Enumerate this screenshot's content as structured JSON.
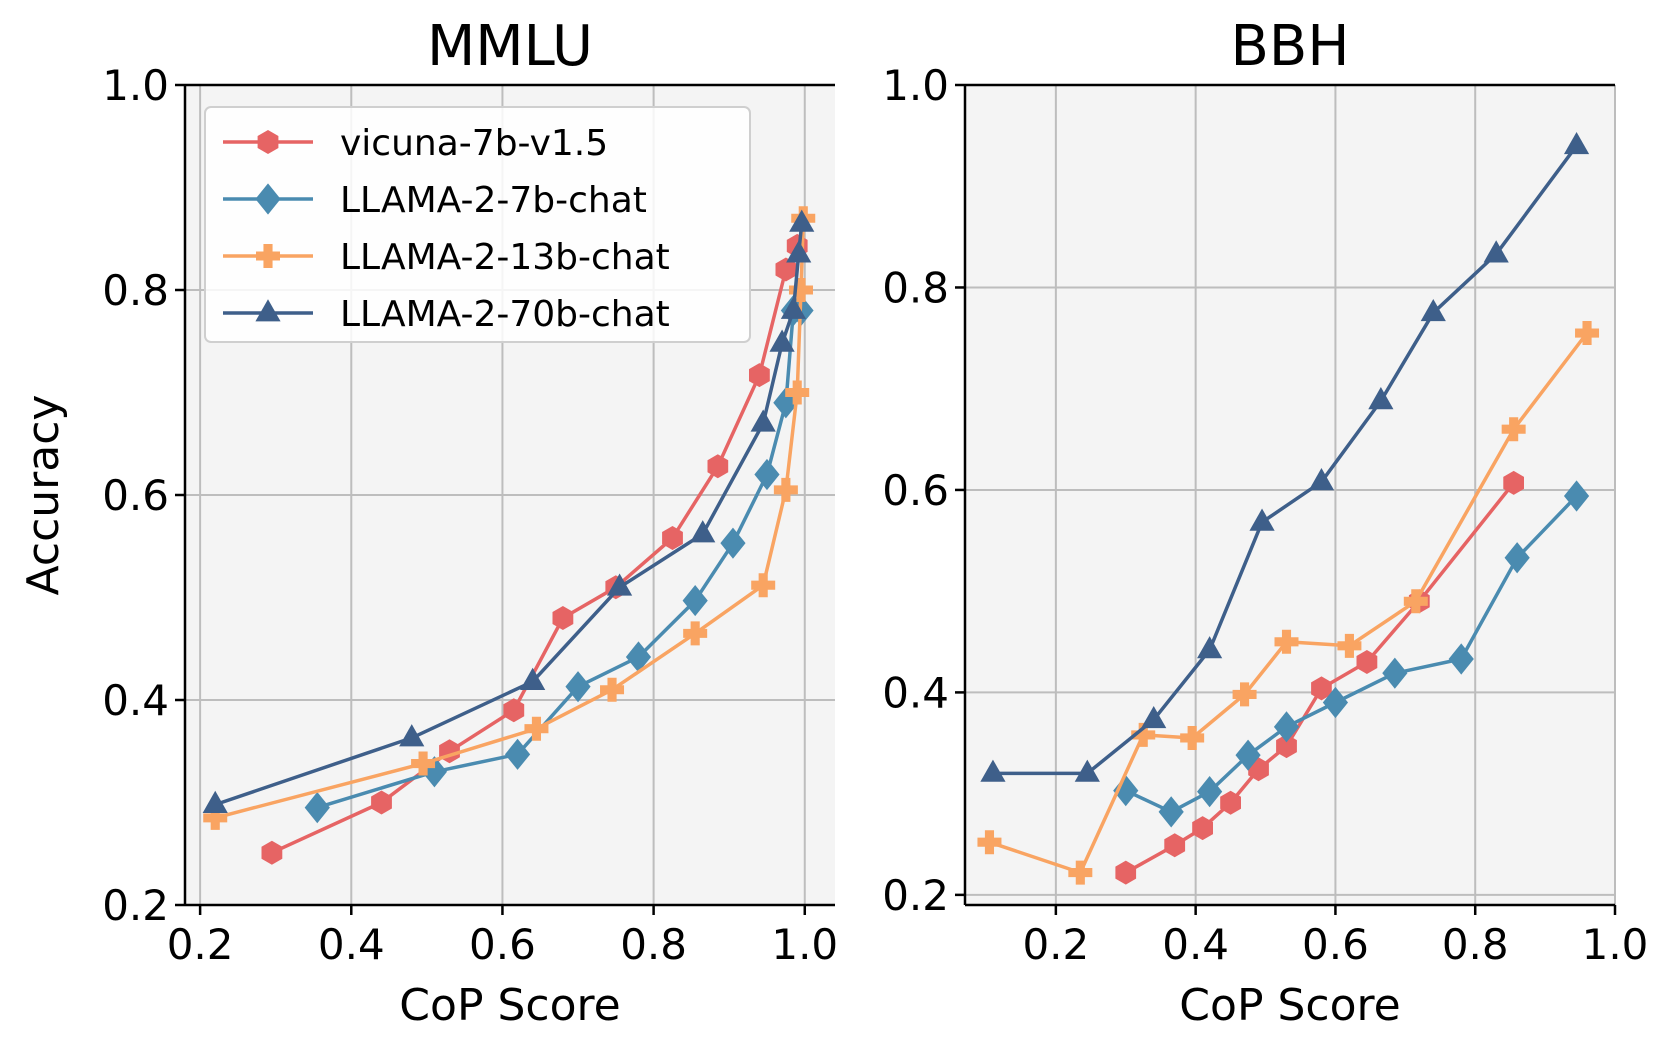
{
  "chart_data": [
    {
      "type": "line",
      "title": "MMLU",
      "xlabel": "CoP Score",
      "ylabel": "Accuracy",
      "xlim": [
        0.18,
        1.04
      ],
      "ylim": [
        0.2,
        1.0
      ],
      "xticks": [
        "0.2",
        "0.4",
        "0.6",
        "0.8",
        "1.0"
      ],
      "yticks": [
        "0.2",
        "0.4",
        "0.6",
        "0.8",
        "1.0"
      ],
      "xtick_values": [
        0.2,
        0.4,
        0.6,
        0.8,
        1.0
      ],
      "ytick_values": [
        0.2,
        0.4,
        0.6,
        0.8,
        1.0
      ],
      "grid": true,
      "legend": "top-left",
      "series": [
        {
          "name": "vicuna-7b-v1.5",
          "color": "#e66464",
          "marker": "hexagon",
          "x": [
            0.295,
            0.44,
            0.53,
            0.615,
            0.68,
            0.75,
            0.825,
            0.885,
            0.94,
            0.975,
            0.99
          ],
          "y": [
            0.251,
            0.3,
            0.35,
            0.39,
            0.48,
            0.51,
            0.558,
            0.628,
            0.717,
            0.82,
            0.843
          ]
        },
        {
          "name": "LLAMA-2-7b-chat",
          "color": "#4a8bb0",
          "marker": "diamond",
          "x": [
            0.355,
            0.51,
            0.62,
            0.7,
            0.78,
            0.855,
            0.905,
            0.95,
            0.975,
            0.985,
            0.995
          ],
          "y": [
            0.295,
            0.33,
            0.347,
            0.413,
            0.442,
            0.497,
            0.553,
            0.62,
            0.69,
            0.78,
            0.78
          ]
        },
        {
          "name": "LLAMA-2-13b-chat",
          "color": "#f9a462",
          "marker": "plus",
          "x": [
            0.22,
            0.495,
            0.645,
            0.745,
            0.855,
            0.945,
            0.975,
            0.99,
            0.995,
            0.998
          ],
          "y": [
            0.285,
            0.338,
            0.372,
            0.41,
            0.465,
            0.512,
            0.605,
            0.7,
            0.8,
            0.87
          ]
        },
        {
          "name": "LLAMA-2-70b-chat",
          "color": "#3e5f8a",
          "marker": "triangle",
          "x": [
            0.22,
            0.48,
            0.64,
            0.755,
            0.865,
            0.945,
            0.97,
            0.985,
            0.992,
            0.996
          ],
          "y": [
            0.298,
            0.363,
            0.418,
            0.51,
            0.562,
            0.67,
            0.748,
            0.78,
            0.835,
            0.865
          ]
        }
      ]
    },
    {
      "type": "line",
      "title": "BBH",
      "xlabel": "CoP Score",
      "ylabel": "",
      "xlim": [
        0.07,
        1.0
      ],
      "ylim": [
        0.19,
        1.0
      ],
      "xticks": [
        "0.2",
        "0.4",
        "0.6",
        "0.8",
        "1.0"
      ],
      "yticks": [
        "0.2",
        "0.4",
        "0.6",
        "0.8",
        "1.0"
      ],
      "xtick_values": [
        0.2,
        0.4,
        0.6,
        0.8,
        1.0
      ],
      "ytick_values": [
        0.2,
        0.4,
        0.6,
        0.8,
        1.0
      ],
      "grid": true,
      "series": [
        {
          "name": "vicuna-7b-v1.5",
          "color": "#e66464",
          "marker": "hexagon",
          "x": [
            0.3,
            0.37,
            0.41,
            0.45,
            0.49,
            0.53,
            0.58,
            0.645,
            0.72,
            0.855
          ],
          "y": [
            0.222,
            0.249,
            0.266,
            0.291,
            0.324,
            0.347,
            0.404,
            0.43,
            0.49,
            0.607
          ]
        },
        {
          "name": "LLAMA-2-7b-chat",
          "color": "#4a8bb0",
          "marker": "diamond",
          "x": [
            0.3,
            0.365,
            0.42,
            0.475,
            0.53,
            0.6,
            0.685,
            0.78,
            0.86,
            0.945
          ],
          "y": [
            0.303,
            0.282,
            0.302,
            0.338,
            0.366,
            0.39,
            0.419,
            0.433,
            0.533,
            0.594
          ]
        },
        {
          "name": "LLAMA-2-13b-chat",
          "color": "#f9a462",
          "marker": "plus",
          "x": [
            0.105,
            0.235,
            0.325,
            0.395,
            0.47,
            0.53,
            0.62,
            0.715,
            0.855,
            0.96
          ],
          "y": [
            0.252,
            0.222,
            0.358,
            0.355,
            0.398,
            0.45,
            0.446,
            0.49,
            0.66,
            0.755
          ]
        },
        {
          "name": "LLAMA-2-70b-chat",
          "color": "#3e5f8a",
          "marker": "triangle",
          "x": [
            0.11,
            0.245,
            0.34,
            0.42,
            0.495,
            0.58,
            0.665,
            0.74,
            0.83,
            0.945
          ],
          "y": [
            0.32,
            0.32,
            0.373,
            0.442,
            0.568,
            0.608,
            0.688,
            0.775,
            0.833,
            0.94
          ]
        }
      ]
    }
  ]
}
